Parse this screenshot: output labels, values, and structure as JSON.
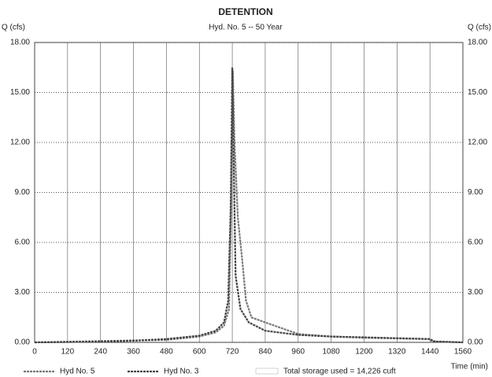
{
  "chart_data": {
    "type": "line",
    "title": "DETENTION",
    "subtitle": "Hyd. No. 5 -- 50 Year",
    "y_label": "Q (cfs)",
    "x_label": "Time (min)",
    "annotation": "Total storage used = 14,226 cuft",
    "xlim": [
      0,
      1560
    ],
    "xticks": [
      0,
      120,
      240,
      360,
      480,
      600,
      720,
      840,
      960,
      1080,
      1200,
      1320,
      1440,
      1560
    ],
    "ylim": [
      0,
      18
    ],
    "yticks": [
      {
        "value": 0,
        "label": "0.00"
      },
      {
        "value": 3,
        "label": "3.00"
      },
      {
        "value": 6,
        "label": "6.00"
      },
      {
        "value": 9,
        "label": "9.00"
      },
      {
        "value": 12,
        "label": "12.00"
      },
      {
        "value": 15,
        "label": "15.00"
      },
      {
        "value": 18,
        "label": "18.00"
      }
    ],
    "grid": true,
    "series": [
      {
        "name": "Hyd No. 5",
        "color": "#777777",
        "x": [
          0,
          480,
          600,
          660,
          690,
          708,
          718,
          722,
          728,
          740,
          756,
          770,
          790,
          840,
          960,
          1080,
          1200,
          1440,
          1460,
          1560
        ],
        "values": [
          0,
          0.15,
          0.35,
          0.6,
          1.0,
          2.0,
          10,
          16.3,
          12,
          7.5,
          5,
          2.5,
          1.5,
          1.2,
          0.5,
          0.35,
          0.28,
          0.2,
          0.05,
          0
        ]
      },
      {
        "name": "Hyd No. 3",
        "color": "#444444",
        "x": [
          0,
          120,
          240,
          360,
          480,
          600,
          660,
          690,
          705,
          714,
          720,
          726,
          732,
          750,
          780,
          840,
          960,
          1080,
          1200,
          1320,
          1440,
          1450,
          1560
        ],
        "values": [
          0,
          0.02,
          0.05,
          0.1,
          0.2,
          0.4,
          0.7,
          1.2,
          2.5,
          8,
          16.5,
          10,
          4,
          2,
          1.2,
          0.7,
          0.45,
          0.35,
          0.3,
          0.25,
          0.2,
          0.05,
          0
        ]
      }
    ]
  }
}
